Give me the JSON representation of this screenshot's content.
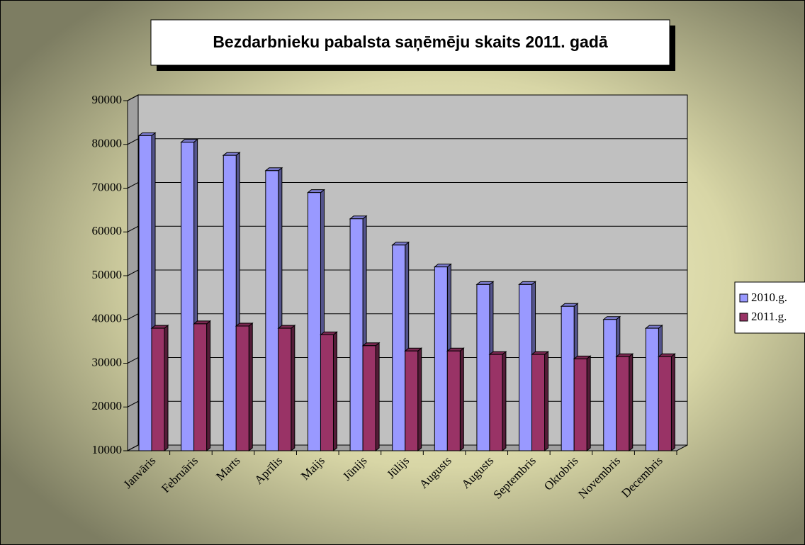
{
  "chart_data": {
    "type": "bar",
    "title": "Bezdarbnieku  pabalsta  saņēmēju  skaits 2011. gadā",
    "categories": [
      "Janvāris",
      "Februāris",
      "Marts",
      "Aprīlis",
      "Maijs",
      "Jūnijs",
      "Jūlijs",
      "Augusts",
      "Augusts",
      "Septembris",
      "Oktobris",
      "Novembris",
      "Decembris"
    ],
    "series": [
      {
        "name": "2010.g.",
        "color": "#9999ff",
        "values": [
          82000,
          80500,
          77500,
          74000,
          69000,
          63000,
          57000,
          52000,
          48000,
          48000,
          43000,
          40000,
          38000
        ]
      },
      {
        "name": "2011.g.",
        "color": "#993366",
        "values": [
          38000,
          39000,
          38500,
          38000,
          36500,
          34000,
          32800,
          32800,
          32000,
          32000,
          31000,
          31500,
          31500
        ]
      }
    ],
    "ylim": [
      10000,
      90000
    ],
    "yticks": [
      10000,
      20000,
      30000,
      40000,
      50000,
      60000,
      70000,
      80000,
      90000
    ],
    "grid": true,
    "legend": "right"
  }
}
